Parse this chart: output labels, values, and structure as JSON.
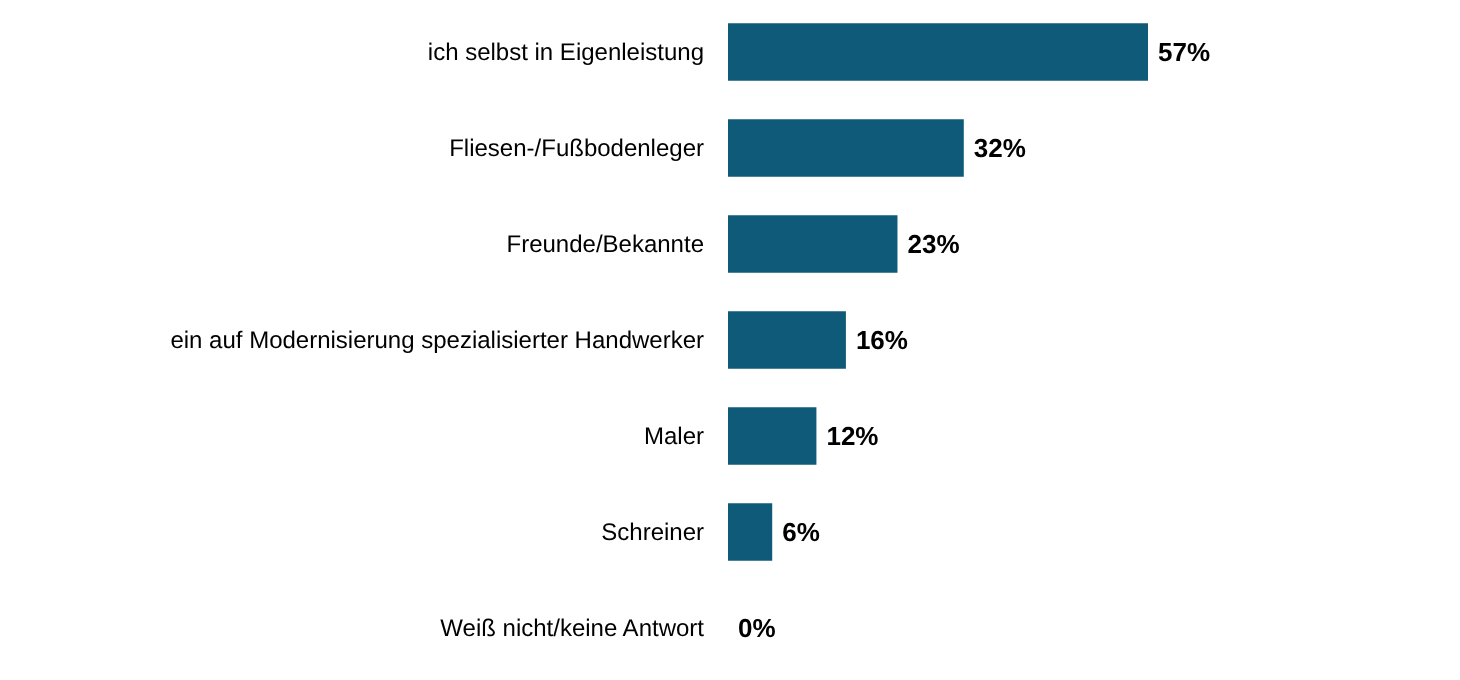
{
  "chart_data": {
    "type": "bar",
    "orientation": "horizontal",
    "categories": [
      "ich selbst in Eigenleistung",
      "Fliesen-/Fußbodenleger",
      "Freunde/Bekannte",
      "ein auf Modernisierung spezialisierter Handwerker",
      "Maler",
      "Schreiner",
      "Weiß nicht/keine Antwort"
    ],
    "values": [
      57,
      32,
      23,
      16,
      12,
      6,
      0
    ],
    "value_labels": [
      "57%",
      "32%",
      "23%",
      "16%",
      "12%",
      "6%",
      "0%"
    ],
    "color": "#0e5a78"
  }
}
